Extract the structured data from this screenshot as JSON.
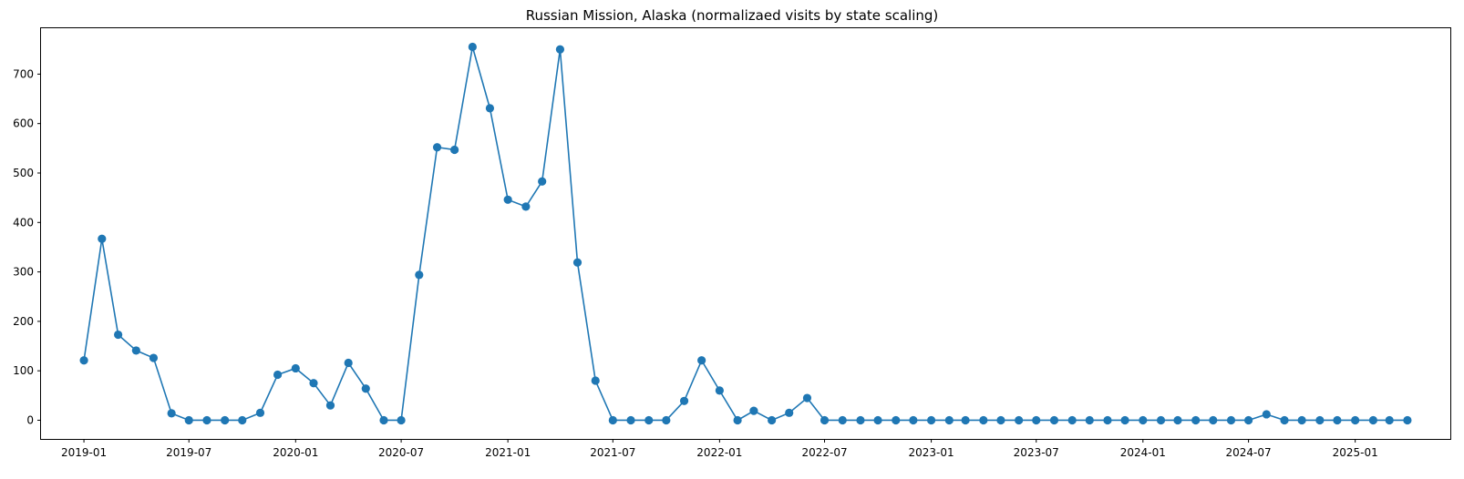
{
  "chart_data": {
    "type": "line",
    "title": "Russian Mission, Alaska (normalizaed visits by state scaling)",
    "xlabel": "",
    "ylabel": "",
    "x_type": "date",
    "xlim": [
      "2018-10-19",
      "2025-06-14"
    ],
    "ylim": [
      -37.8,
      792.8
    ],
    "grid": false,
    "legend": "none",
    "series_color": "#1f77b4",
    "marker": "circle",
    "x_ticks": [
      "2019-01",
      "2019-07",
      "2020-01",
      "2020-07",
      "2021-01",
      "2021-07",
      "2022-01",
      "2022-07",
      "2023-01",
      "2023-07",
      "2024-01",
      "2024-07",
      "2025-01"
    ],
    "y_ticks": [
      0,
      100,
      200,
      300,
      400,
      500,
      600,
      700
    ],
    "x": [
      "2019-01",
      "2019-02",
      "2019-03",
      "2019-04",
      "2019-05",
      "2019-06",
      "2019-07",
      "2019-08",
      "2019-09",
      "2019-10",
      "2019-11",
      "2019-12",
      "2020-01",
      "2020-02",
      "2020-03",
      "2020-04",
      "2020-05",
      "2020-06",
      "2020-07",
      "2020-08",
      "2020-09",
      "2020-10",
      "2020-11",
      "2020-12",
      "2021-01",
      "2021-02",
      "2021-03",
      "2021-04",
      "2021-05",
      "2021-06",
      "2021-07",
      "2021-08",
      "2021-09",
      "2021-10",
      "2021-11",
      "2021-12",
      "2022-01",
      "2022-02",
      "2022-03",
      "2022-04",
      "2022-05",
      "2022-06",
      "2022-07",
      "2022-08",
      "2022-09",
      "2022-10",
      "2022-11",
      "2022-12",
      "2023-01",
      "2023-02",
      "2023-03",
      "2023-04",
      "2023-05",
      "2023-06",
      "2023-07",
      "2023-08",
      "2023-09",
      "2023-10",
      "2023-11",
      "2023-12",
      "2024-01",
      "2024-02",
      "2024-03",
      "2024-04",
      "2024-05",
      "2024-06",
      "2024-07",
      "2024-08",
      "2024-09",
      "2024-10",
      "2024-11",
      "2024-12",
      "2025-01",
      "2025-02",
      "2025-03",
      "2025-04"
    ],
    "values": [
      121,
      367,
      173,
      141,
      126,
      14,
      0,
      0,
      0,
      0,
      15,
      92,
      105,
      75,
      30,
      116,
      64,
      0,
      0,
      294,
      552,
      547,
      755,
      631,
      446,
      432,
      483,
      750,
      319,
      80,
      0,
      0,
      0,
      0,
      39,
      121,
      60,
      0,
      19,
      0,
      15,
      45,
      0,
      0,
      0,
      0,
      0,
      0,
      0,
      0,
      0,
      0,
      0,
      0,
      0,
      0,
      0,
      0,
      0,
      0,
      0,
      0,
      0,
      0,
      0,
      0,
      0,
      12,
      0,
      0,
      0,
      0,
      0,
      0,
      0,
      0
    ]
  }
}
